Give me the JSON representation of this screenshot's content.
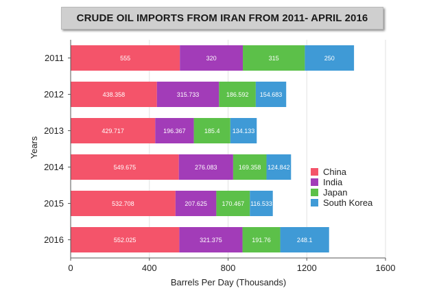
{
  "chart_data": {
    "type": "bar",
    "orientation": "horizontal",
    "stacked": true,
    "title": "CRUDE OIL IMPORTS FROM IRAN FROM 2011- APRIL 2016",
    "xlabel": "Barrels Per Day (Thousands)",
    "ylabel": "Years",
    "xlim": [
      0,
      1600
    ],
    "xticks": [
      "0",
      "400",
      "800",
      "1200",
      "1600"
    ],
    "categories": [
      "2011",
      "2012",
      "2013",
      "2014",
      "2015",
      "2016"
    ],
    "series": [
      {
        "name": "China",
        "color": "#f4546a",
        "values": [
          555,
          438.358,
          429.717,
          549.675,
          532.708,
          552.025
        ],
        "labels": [
          "555",
          "438.358",
          "429.717",
          "549.675",
          "532.708",
          "552.025"
        ]
      },
      {
        "name": "India",
        "color": "#a23cb8",
        "values": [
          320,
          315.733,
          196.367,
          276.083,
          207.625,
          321.375
        ],
        "labels": [
          "320",
          "315.733",
          "196.367",
          "276.083",
          "207.625",
          "321.375"
        ]
      },
      {
        "name": "Japan",
        "color": "#5cc049",
        "values": [
          315,
          186.592,
          185.4,
          169.358,
          170.467,
          191.76
        ],
        "labels": [
          "315",
          "186.592",
          "185.4",
          "169.358",
          "170.467",
          "191.76"
        ]
      },
      {
        "name": "South Korea",
        "color": "#3f9ad6",
        "values": [
          250,
          154.683,
          134.133,
          124.842,
          116.533,
          248.1
        ],
        "labels": [
          "250",
          "154.683",
          "134.133",
          "124.842",
          "116.533",
          "248.1"
        ]
      }
    ],
    "legend_position": "right",
    "grid": true
  }
}
